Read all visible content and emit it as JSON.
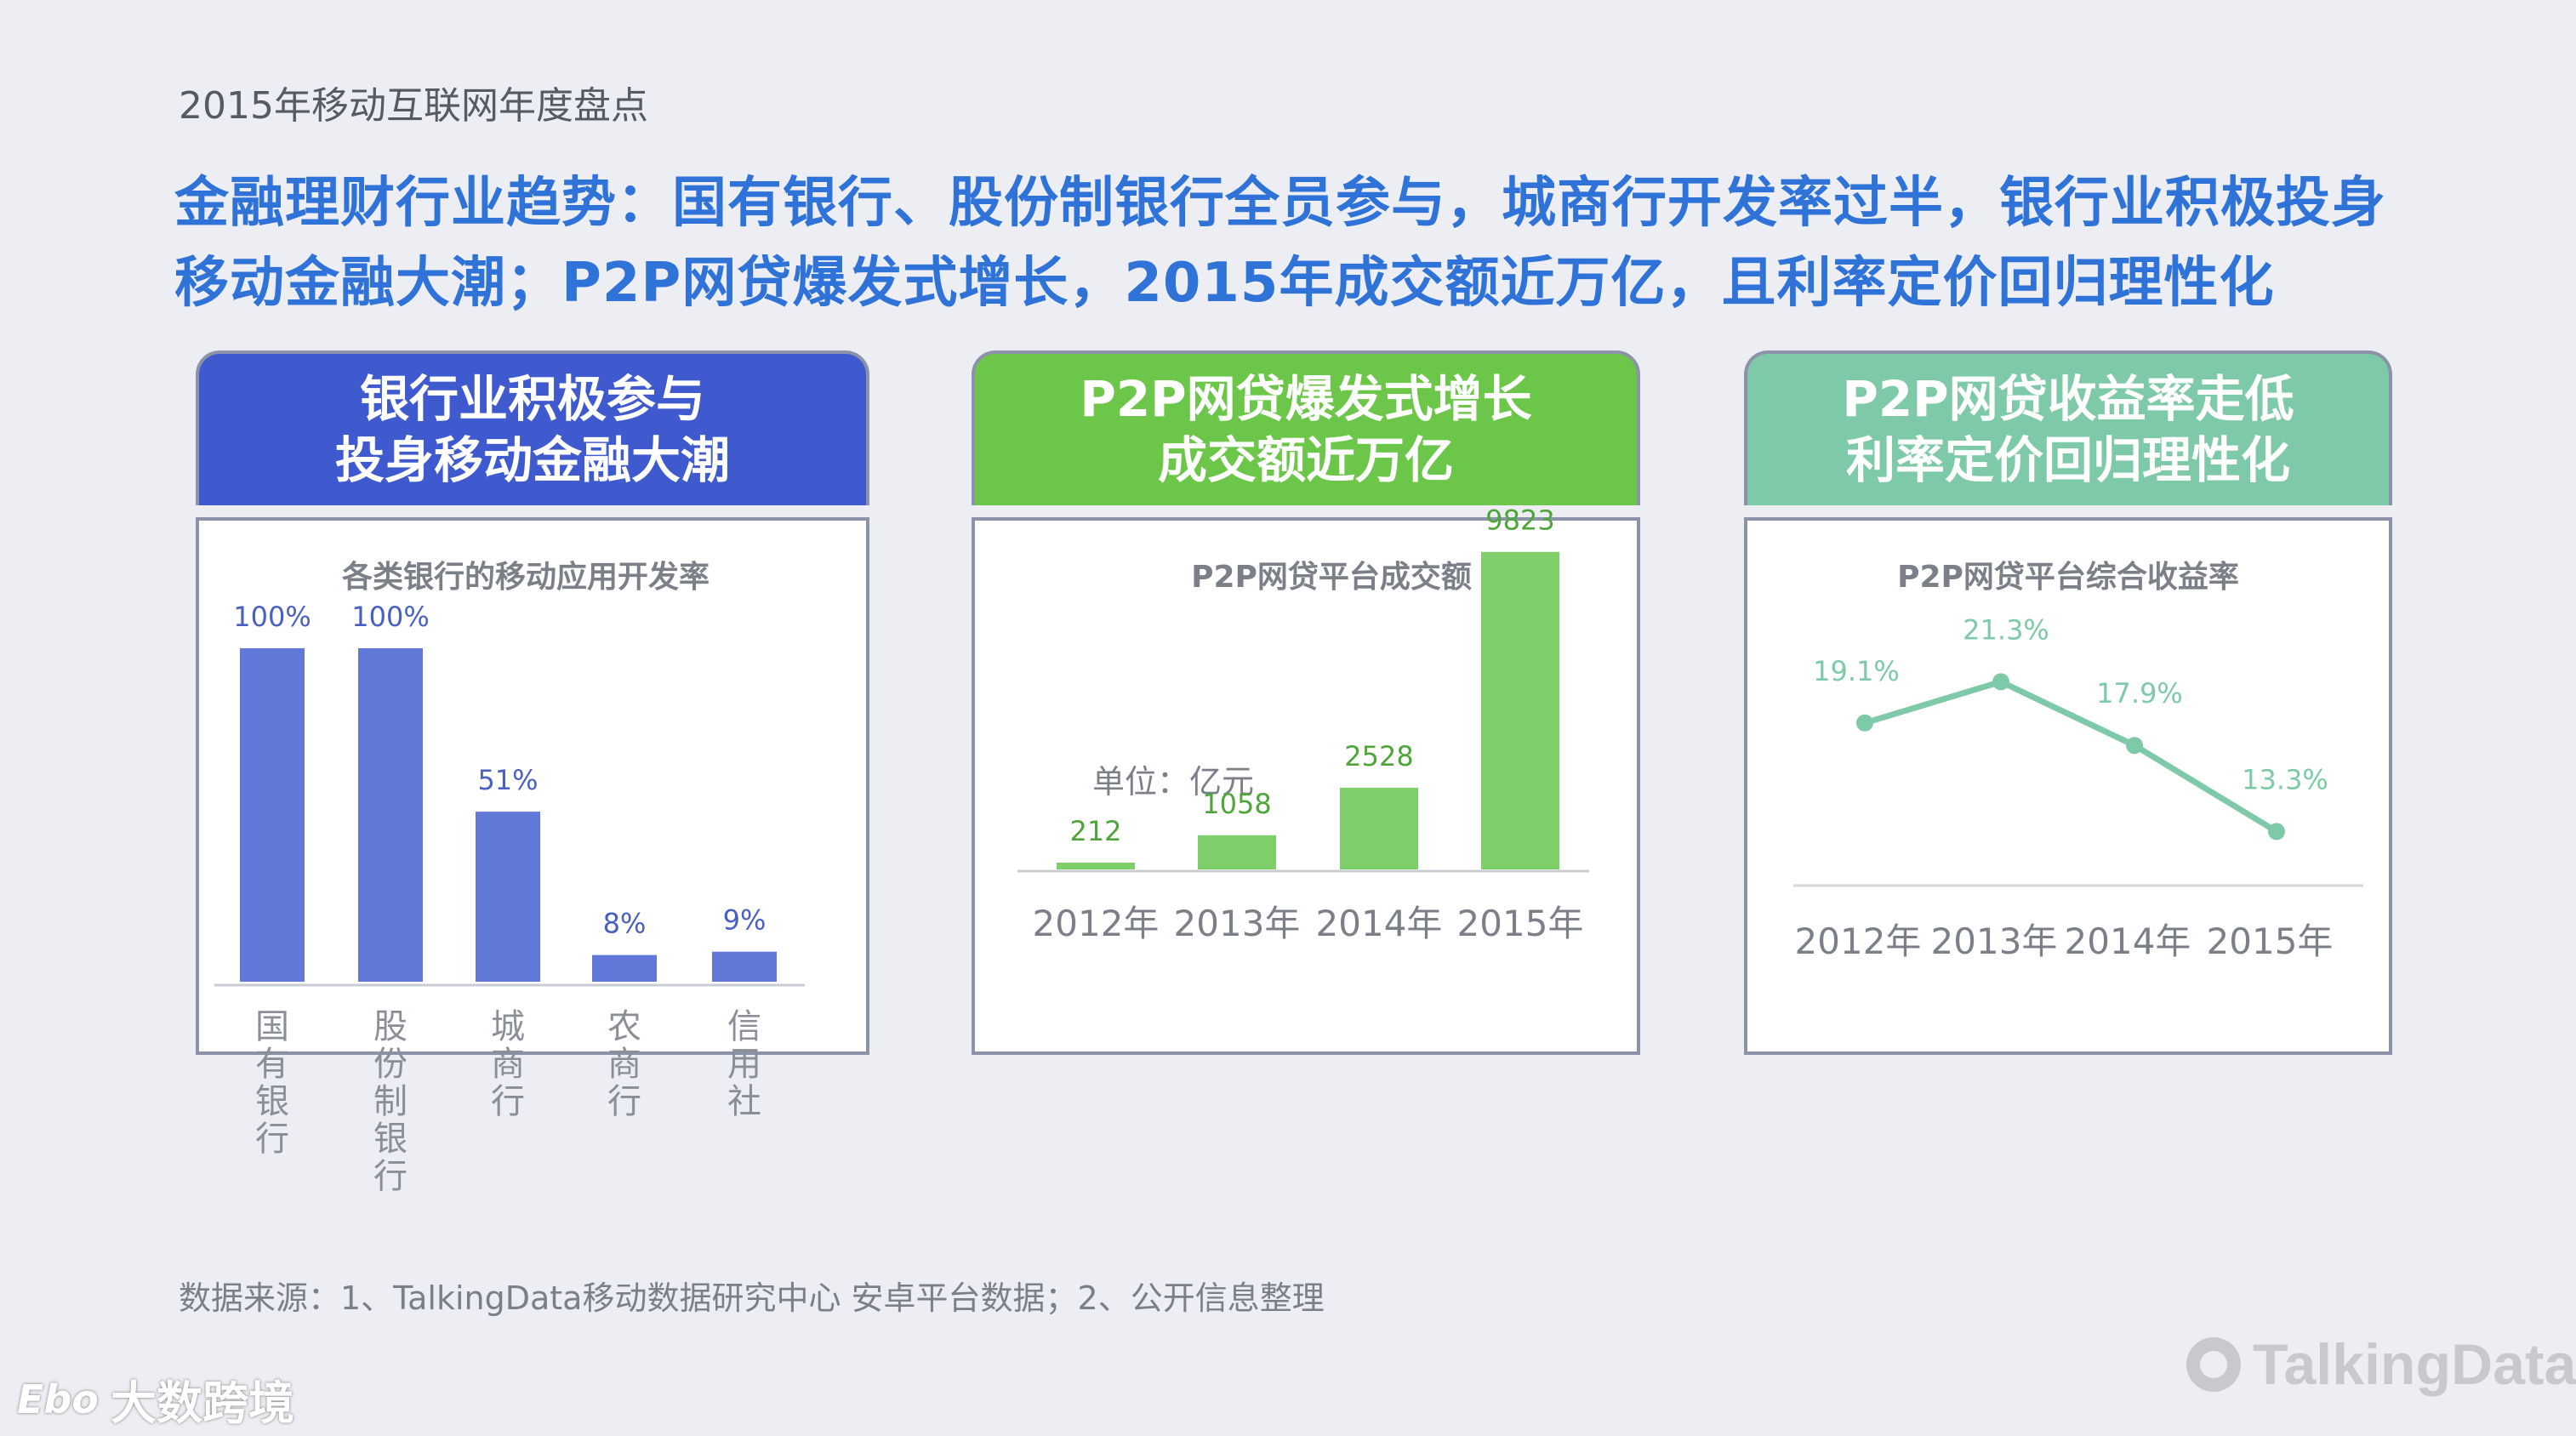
{
  "subtitle": "2015年移动互联网年度盘点",
  "headline": {
    "line1": "金融理财行业趋势：国有银行、股份制银行全员参与，城商行开发率过半，银行业积极投身",
    "line2": "移动金融大潮；P2P网贷爆发式增长，2015年成交额近万亿，且利率定价回归理性化"
  },
  "panels": [
    {
      "header_line1": "银行业积极参与",
      "header_line2": "投身移动金融大潮",
      "header_color": "#3f5acf"
    },
    {
      "header_line1": "P2P网贷爆发式增长",
      "header_line2": "成交额近万亿",
      "header_color": "#6cc649"
    },
    {
      "header_line1": "P2P网贷收益率走低",
      "header_line2": "利率定价回归理性化",
      "header_color": "#7ec9a8"
    }
  ],
  "chart_data": [
    {
      "type": "bar",
      "title": "各类银行的移动应用开发率",
      "categories": [
        "国有银行",
        "股份制银行",
        "城商行",
        "农商行",
        "信用社"
      ],
      "values": [
        100,
        100,
        51,
        8,
        9
      ],
      "value_labels": [
        "100%",
        "100%",
        "51%",
        "8%",
        "9%"
      ],
      "color": "#6278d9",
      "label_color": "#4a5fc2",
      "ylim": [
        0,
        100
      ],
      "grid": false,
      "category_orientation": "vertical"
    },
    {
      "type": "bar",
      "title": "P2P网贷平台成交额",
      "unit_label": "单位：亿元",
      "categories": [
        "2012年",
        "2013年",
        "2014年",
        "2015年"
      ],
      "values": [
        212,
        1058,
        2528,
        9823
      ],
      "value_labels": [
        "212",
        "1058",
        "2528",
        "9823"
      ],
      "color": "#7ecf6a",
      "label_color": "#4ea63a",
      "ylim": [
        0,
        10000
      ],
      "grid": false
    },
    {
      "type": "line",
      "title": "P2P网贷平台综合收益率",
      "categories": [
        "2012年",
        "2013年",
        "2014年",
        "2015年"
      ],
      "values": [
        19.1,
        21.3,
        17.9,
        13.3
      ],
      "value_labels": [
        "19.1%",
        "21.3%",
        "17.9%",
        "13.3%"
      ],
      "color": "#7ec9a8",
      "label_color": "#7ec9a8",
      "ylim": [
        12,
        22
      ],
      "grid": false
    }
  ],
  "footer": "数据来源：1、TalkingData移动数据研究中心 安卓平台数据；2、公开信息整理",
  "watermark_left": {
    "logo": "Ebo",
    "text": "大数跨境"
  },
  "watermark_right": "TalkingData"
}
